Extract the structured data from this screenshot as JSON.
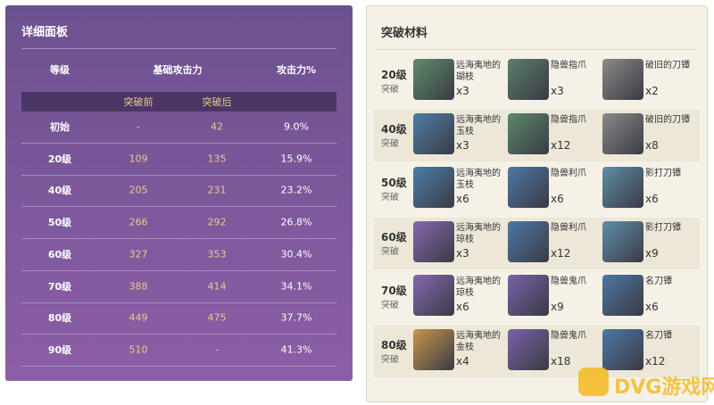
{
  "stats_panel": {
    "title": "详细面板",
    "headers": {
      "level": "等级",
      "base_atk": "基础攻击力",
      "atk_pct": "攻击力%"
    },
    "subheaders": {
      "before": "突破前",
      "after": "突破后"
    },
    "rows": [
      [
        "初始",
        "-",
        "42",
        "9.0%"
      ],
      [
        "20级",
        "109",
        "135",
        "15.9%"
      ],
      [
        "40级",
        "205",
        "231",
        "23.2%"
      ],
      [
        "50级",
        "266",
        "292",
        "26.8%"
      ],
      [
        "60级",
        "327",
        "353",
        "30.4%"
      ],
      [
        "70级",
        "388",
        "414",
        "34.1%"
      ],
      [
        "80级",
        "449",
        "475",
        "37.7%"
      ],
      [
        "90级",
        "510",
        "-",
        "41.3%"
      ]
    ]
  },
  "materials_panel": {
    "title": "突破材料",
    "rows": [
      {
        "level": "20级",
        "label": "突破",
        "items": [
          {
            "name": "远海夷地的瑚枝",
            "count": "x3"
          },
          {
            "name": "隐兽指爪",
            "count": "x3"
          },
          {
            "name": "破旧的刀镡",
            "count": "x2"
          }
        ]
      },
      {
        "level": "40级",
        "label": "突破",
        "items": [
          {
            "name": "远海夷地的玉枝",
            "count": "x3"
          },
          {
            "name": "隐兽指爪",
            "count": "x12"
          },
          {
            "name": "破旧的刀镡",
            "count": "x8"
          }
        ]
      },
      {
        "level": "50级",
        "label": "突破",
        "items": [
          {
            "name": "远海夷地的玉枝",
            "count": "x6"
          },
          {
            "name": "隐兽利爪",
            "count": "x6"
          },
          {
            "name": "影打刀镡",
            "count": "x6"
          }
        ]
      },
      {
        "level": "60级",
        "label": "突破",
        "items": [
          {
            "name": "远海夷地的琼枝",
            "count": "x3"
          },
          {
            "name": "隐兽利爪",
            "count": "x12"
          },
          {
            "name": "影打刀镡",
            "count": "x9"
          }
        ]
      },
      {
        "level": "70级",
        "label": "突破",
        "items": [
          {
            "name": "远海夷地的琼枝",
            "count": "x6"
          },
          {
            "name": "隐兽鬼爪",
            "count": "x9"
          },
          {
            "name": "名刀镡",
            "count": "x6"
          }
        ]
      },
      {
        "level": "80级",
        "label": "突破",
        "items": [
          {
            "name": "远海夷地的金枝",
            "count": "x4"
          },
          {
            "name": "隐兽鬼爪",
            "count": "x18"
          },
          {
            "name": "名刀镡",
            "count": "x12"
          }
        ]
      }
    ]
  },
  "watermark": "DVG游戏网"
}
